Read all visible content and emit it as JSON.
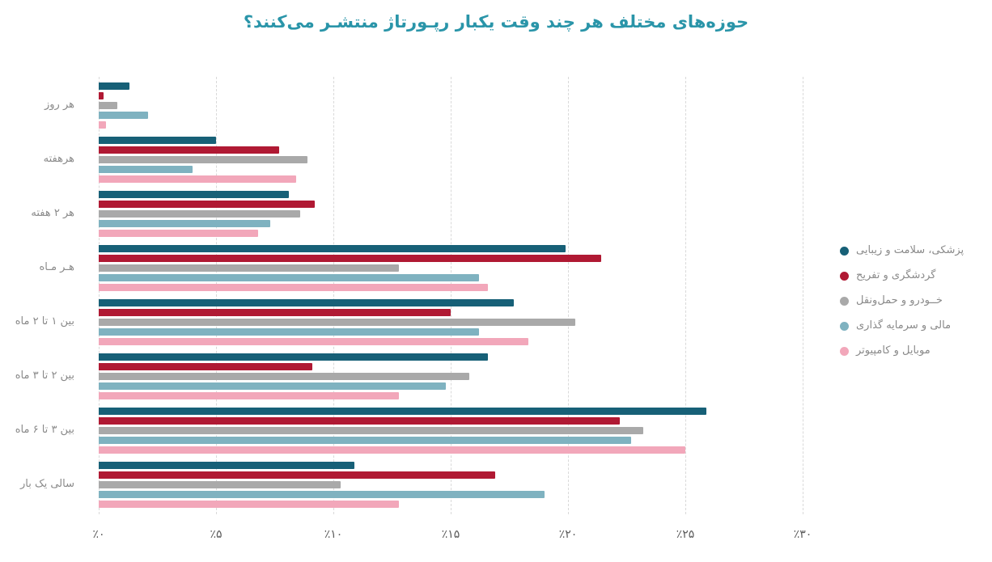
{
  "title": "حوزه‌های مختلف هر چند وقت یکبار رپـورتاژ منتشـر می‌کنند؟",
  "colors": {
    "title": "#2a95a9",
    "category_label": "#8a8a8a",
    "tick_label": "#5b5b5b",
    "gridline": "#d9d9d9",
    "background": "#ffffff"
  },
  "chart_data": {
    "type": "bar",
    "orientation": "horizontal",
    "grid": "dashed-vertical",
    "legend_position": "right",
    "xlabel": "",
    "ylabel": "",
    "xlim": [
      0,
      30
    ],
    "x_ticks": [
      {
        "value": 0,
        "label": "٪۰"
      },
      {
        "value": 5,
        "label": "٪۵"
      },
      {
        "value": 10,
        "label": "٪۱۰"
      },
      {
        "value": 15,
        "label": "٪۱۵"
      },
      {
        "value": 20,
        "label": "٪۲۰"
      },
      {
        "value": 25,
        "label": "٪۲۵"
      },
      {
        "value": 30,
        "label": "٪۳۰"
      }
    ],
    "categories": [
      "هر روز",
      "هرهفته",
      "هر ۲ هفته",
      "هـر مـاه",
      "بین ۱ تا ۲ ماه",
      "بین ۲ تا ۳ ماه",
      "بین ۳ تا ۶ ماه",
      "سالی یک بار"
    ],
    "series": [
      {
        "name": "پزشکی، سلامت و زیبایی",
        "color": "#176077",
        "values": [
          1.3,
          5.0,
          8.1,
          19.9,
          17.7,
          16.6,
          25.9,
          10.9
        ]
      },
      {
        "name": "گردشگری و تفریح",
        "color": "#b01933",
        "values": [
          0.2,
          7.7,
          9.2,
          21.4,
          15.0,
          9.1,
          22.2,
          16.9
        ]
      },
      {
        "name": "خــودرو و حمل‌ونقل",
        "color": "#a9a9a9",
        "values": [
          0.8,
          8.9,
          8.6,
          12.8,
          20.3,
          15.8,
          23.2,
          10.3
        ]
      },
      {
        "name": "مالی و سرمایه گذاری",
        "color": "#7fb2c0",
        "values": [
          2.1,
          4.0,
          7.3,
          16.2,
          16.2,
          14.8,
          22.7,
          19.0
        ]
      },
      {
        "name": "موبایل و کامپیوتر",
        "color": "#f2a7ba",
        "values": [
          0.3,
          8.4,
          6.8,
          16.6,
          18.3,
          12.8,
          25.0,
          12.8
        ]
      }
    ]
  }
}
